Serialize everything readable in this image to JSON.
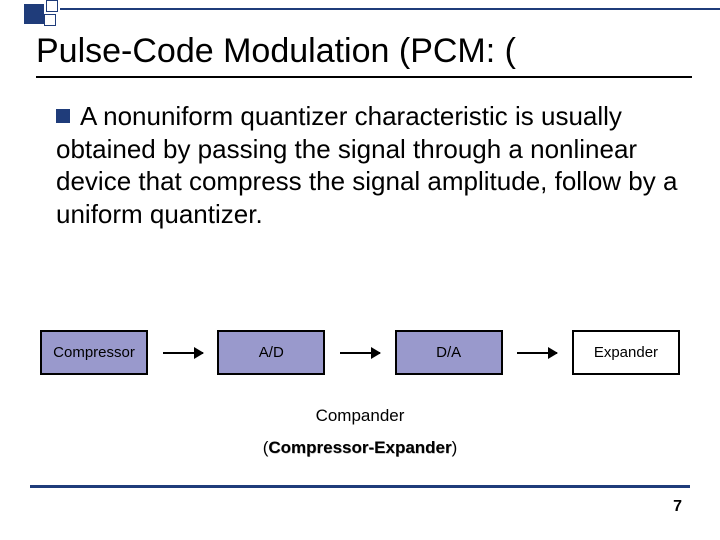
{
  "title": "Pulse-Code Modulation (PCM: (",
  "body": "A nonuniform quantizer characteristic is usually obtained by passing the signal through a nonlinear device that compress the signal amplitude, follow by  a uniform quantizer.",
  "flow": {
    "boxes": [
      {
        "label": "Compressor",
        "fill": "purple"
      },
      {
        "label": "A/D",
        "fill": "purple"
      },
      {
        "label": "D/A",
        "fill": "purple"
      },
      {
        "label": "Expander",
        "fill": "white"
      }
    ]
  },
  "compander": "Compander",
  "compexp_bold": "Compressor-Expander",
  "compexp_open": "(",
  "compexp_close": ")",
  "page": "7",
  "colors": {
    "accent": "#1f3c7a",
    "box_purple": "#9999cc",
    "box_white": "#ffffff"
  }
}
